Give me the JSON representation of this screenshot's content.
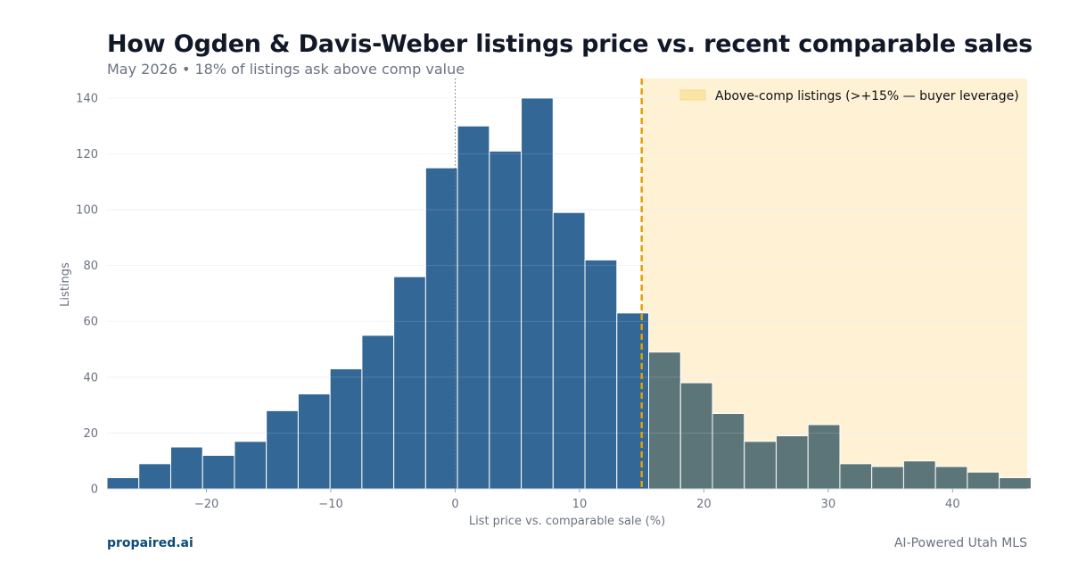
{
  "header": {
    "title": "How Ogden & Davis-Weber listings price vs. recent comparable sales",
    "subtitle": "May 2026 • 18% of listings ask above comp value"
  },
  "footer": {
    "brand": "propaired.ai",
    "tagline": "AI-Powered Utah MLS"
  },
  "colors": {
    "bar_below": "#336795",
    "bar_above": "#5b7579",
    "shade": "#fff1d3",
    "threshold_line": "#e69f00",
    "legend_patch": "#fbe4a6"
  },
  "chart_data": {
    "type": "bar",
    "subtype": "histogram",
    "xlabel": "List price vs. comparable sale (%)",
    "ylabel": "Listings",
    "xlim": [
      -28,
      46
    ],
    "ylim": [
      0,
      147
    ],
    "bin_width": 2.5625,
    "bin_start": -28,
    "values": [
      4,
      9,
      15,
      12,
      17,
      28,
      34,
      43,
      55,
      76,
      115,
      130,
      121,
      140,
      99,
      82,
      63,
      49,
      38,
      27,
      17,
      19,
      23,
      9,
      8,
      10,
      8,
      6,
      4
    ],
    "x_ticks": [
      -20,
      -10,
      0,
      10,
      20,
      30,
      40
    ],
    "x_tick_labels": [
      "−20",
      "−10",
      "0",
      "10",
      "20",
      "30",
      "40"
    ],
    "y_ticks": [
      0,
      20,
      40,
      60,
      80,
      100,
      120,
      140
    ],
    "y_tick_labels": [
      "0",
      "20",
      "40",
      "60",
      "80",
      "100",
      "120",
      "140"
    ],
    "reference_line": 0,
    "threshold": 15,
    "shaded_region": [
      15,
      46
    ],
    "legend": {
      "placement": "top-right",
      "entries": [
        "Above-comp listings (>+15% — buyer leverage)"
      ]
    },
    "grid": true
  }
}
